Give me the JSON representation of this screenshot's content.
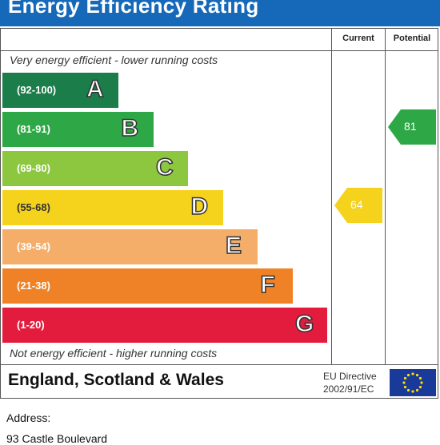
{
  "title": "Energy Efficiency Rating",
  "columns": {
    "current": "Current",
    "potential": "Potential"
  },
  "notes": {
    "top": "Very energy efficient - lower running costs",
    "bottom": "Not energy efficient - higher running costs"
  },
  "chart_data": {
    "type": "bar",
    "title": "Energy Efficiency Rating",
    "categories": [
      "A",
      "B",
      "C",
      "D",
      "E",
      "F",
      "G"
    ],
    "ranges": [
      "(92-100)",
      "(81-91)",
      "(69-80)",
      "(55-68)",
      "(39-54)",
      "(21-38)",
      "(1-20)"
    ],
    "colors": [
      "#1a7d4a",
      "#2ea846",
      "#8dc63f",
      "#f5d21c",
      "#f4ae6a",
      "#ef8226",
      "#e31c3d"
    ],
    "current": 64,
    "potential": 81,
    "current_color": "#f5d21c",
    "potential_color": "#2ea846"
  },
  "footer": {
    "region": "England, Scotland & Wales",
    "directive_line1": "EU Directive",
    "directive_line2": "2002/91/EC"
  },
  "address": {
    "label": "Address:",
    "line1": "93 Castle Boulevard"
  }
}
